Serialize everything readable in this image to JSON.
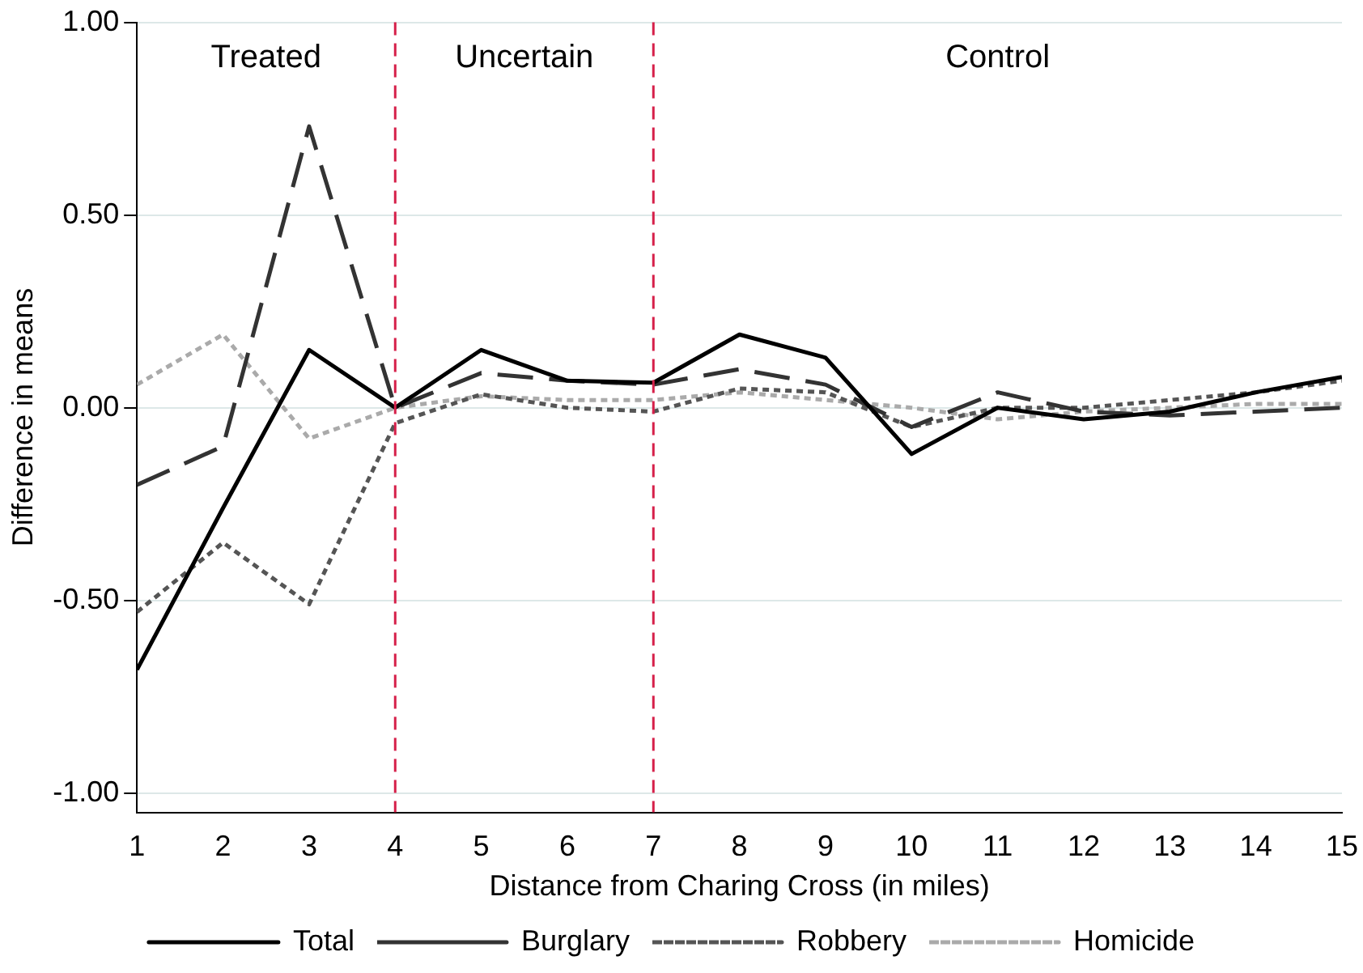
{
  "chart_data": {
    "type": "line",
    "xlabel": "Distance from Charing Cross (in miles)",
    "ylabel": "Difference in means",
    "x": [
      1,
      2,
      3,
      4,
      5,
      6,
      7,
      8,
      9,
      10,
      11,
      12,
      13,
      14,
      15
    ],
    "series": [
      {
        "name": "Total",
        "color": "#000000",
        "line_style": "solid",
        "values": [
          -0.68,
          -0.26,
          0.15,
          0.0,
          0.15,
          0.07,
          0.065,
          0.19,
          0.13,
          -0.12,
          0.0,
          -0.03,
          -0.01,
          0.04,
          0.08
        ]
      },
      {
        "name": "Burglary",
        "color": "#333333",
        "line_style": "dashed",
        "values": [
          -0.2,
          -0.1,
          0.73,
          0.0,
          0.09,
          0.07,
          0.06,
          0.1,
          0.06,
          -0.05,
          0.04,
          -0.01,
          -0.02,
          -0.01,
          0.0
        ]
      },
      {
        "name": "Robbery",
        "color": "#555555",
        "line_style": "dotted",
        "values": [
          -0.53,
          -0.35,
          -0.51,
          -0.04,
          0.035,
          0.0,
          -0.01,
          0.05,
          0.04,
          -0.05,
          0.0,
          0.0,
          0.02,
          0.04,
          0.07
        ]
      },
      {
        "name": "Homicide",
        "color": "#aaaaaa",
        "line_style": "dotted",
        "values": [
          0.06,
          0.19,
          -0.08,
          0.0,
          0.03,
          0.02,
          0.02,
          0.04,
          0.02,
          0.0,
          -0.03,
          -0.01,
          0.0,
          0.01,
          0.01
        ]
      }
    ],
    "xlim": [
      1,
      15
    ],
    "xticks": [
      1,
      2,
      3,
      4,
      5,
      6,
      7,
      8,
      9,
      10,
      11,
      12,
      13,
      14,
      15
    ],
    "ylim": [
      -1.05,
      1.0
    ],
    "yticks": [
      {
        "value": -1,
        "label": "-1.00"
      },
      {
        "value": -0.5,
        "label": "-0.50"
      },
      {
        "value": 0,
        "label": "0.00"
      },
      {
        "value": 0.5,
        "label": "0.50"
      },
      {
        "value": 1,
        "label": "1.00"
      }
    ],
    "ref_lines": [
      {
        "axis": "x",
        "value": 4,
        "color": "#d6204a",
        "line_style": "dashed"
      },
      {
        "axis": "x",
        "value": 7,
        "color": "#d6204a",
        "line_style": "dashed"
      }
    ],
    "annotations": [
      "Treated",
      "Uncertain",
      "Control"
    ],
    "grid": "y",
    "legend": "bottom",
    "marker": "none"
  }
}
